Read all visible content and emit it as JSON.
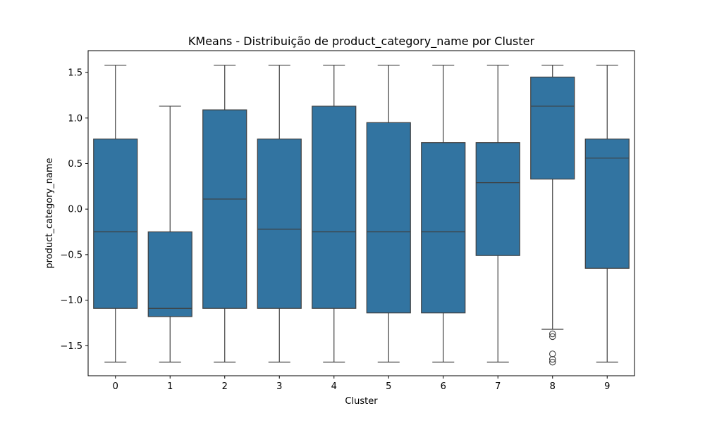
{
  "chart_data": {
    "type": "box",
    "title": "KMeans - Distribuição de product_category_name por Cluster",
    "xlabel": "Cluster",
    "ylabel": "product_category_name",
    "ylim": [
      -1.83,
      1.74
    ],
    "yticks": [
      -1.5,
      -1.0,
      -0.5,
      0.0,
      0.5,
      1.0,
      1.5
    ],
    "ytick_labels": [
      "−1.5",
      "−1.0",
      "−0.5",
      "0.0",
      "0.5",
      "1.0",
      "1.5"
    ],
    "categories": [
      "0",
      "1",
      "2",
      "3",
      "4",
      "5",
      "6",
      "7",
      "8",
      "9"
    ],
    "box_color": "#3274a1",
    "edge_color": "#3f3f3f",
    "grid": false,
    "boxes": [
      {
        "cluster": "0",
        "whisker_low": -1.68,
        "q1": -1.09,
        "median": -0.25,
        "q3": 0.77,
        "whisker_high": 1.58,
        "outliers": []
      },
      {
        "cluster": "1",
        "whisker_low": -1.68,
        "q1": -1.18,
        "median": -1.09,
        "q3": -0.25,
        "whisker_high": 1.13,
        "outliers": []
      },
      {
        "cluster": "2",
        "whisker_low": -1.68,
        "q1": -1.09,
        "median": 0.11,
        "q3": 1.09,
        "whisker_high": 1.58,
        "outliers": []
      },
      {
        "cluster": "3",
        "whisker_low": -1.68,
        "q1": -1.09,
        "median": -0.22,
        "q3": 0.77,
        "whisker_high": 1.58,
        "outliers": []
      },
      {
        "cluster": "4",
        "whisker_low": -1.68,
        "q1": -1.09,
        "median": -0.25,
        "q3": 1.13,
        "whisker_high": 1.58,
        "outliers": []
      },
      {
        "cluster": "5",
        "whisker_low": -1.68,
        "q1": -1.14,
        "median": -0.25,
        "q3": 0.95,
        "whisker_high": 1.58,
        "outliers": []
      },
      {
        "cluster": "6",
        "whisker_low": -1.68,
        "q1": -1.14,
        "median": -0.25,
        "q3": 0.73,
        "whisker_high": 1.58,
        "outliers": []
      },
      {
        "cluster": "7",
        "whisker_low": -1.68,
        "q1": -0.51,
        "median": 0.29,
        "q3": 0.73,
        "whisker_high": 1.58,
        "outliers": []
      },
      {
        "cluster": "8",
        "whisker_low": -1.32,
        "q1": 0.33,
        "median": 1.13,
        "q3": 1.45,
        "whisker_high": 1.58,
        "outliers": [
          -1.37,
          -1.4,
          -1.59,
          -1.65,
          -1.68
        ]
      },
      {
        "cluster": "9",
        "whisker_low": -1.68,
        "q1": -0.65,
        "median": 0.56,
        "q3": 0.77,
        "whisker_high": 1.58,
        "outliers": []
      }
    ]
  }
}
